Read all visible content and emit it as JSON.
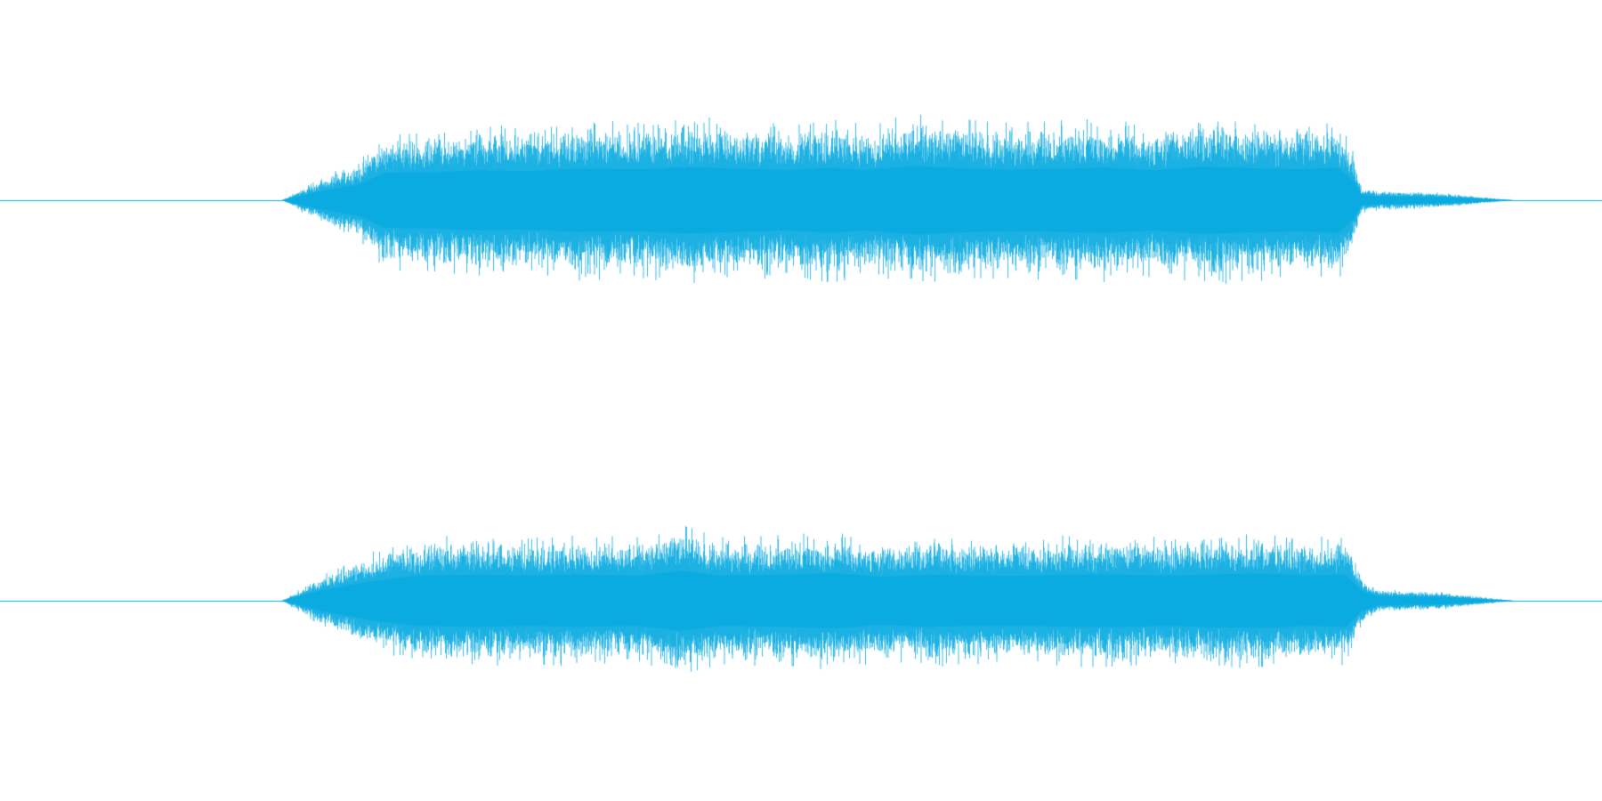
{
  "chart_data": {
    "type": "area",
    "title": "",
    "xlabel": "",
    "ylabel": "",
    "color": "#0aabe1",
    "background": "#ffffff",
    "grid": false,
    "legend": "none",
    "ylim": [
      -1,
      1
    ],
    "series": [
      {
        "channel": 1,
        "envelope": {
          "x": [
            0.0,
            0.176,
            0.2,
            0.225,
            0.24,
            0.27,
            0.3,
            0.33,
            0.36,
            0.4,
            0.43,
            0.46,
            0.49,
            0.52,
            0.54,
            0.57,
            0.6,
            0.63,
            0.66,
            0.69,
            0.72,
            0.75,
            0.78,
            0.81,
            0.835,
            0.845,
            0.85,
            0.86,
            0.9,
            0.945,
            1.0
          ],
          "peak": [
            0.0,
            0.0,
            0.18,
            0.32,
            0.55,
            0.56,
            0.6,
            0.58,
            0.63,
            0.62,
            0.66,
            0.63,
            0.6,
            0.65,
            0.6,
            0.68,
            0.64,
            0.61,
            0.63,
            0.65,
            0.6,
            0.67,
            0.64,
            0.62,
            0.65,
            0.38,
            0.1,
            0.08,
            0.06,
            0.0,
            0.0
          ]
        }
      },
      {
        "channel": 2,
        "envelope": {
          "x": [
            0.0,
            0.176,
            0.2,
            0.23,
            0.26,
            0.3,
            0.33,
            0.36,
            0.4,
            0.425,
            0.45,
            0.49,
            0.52,
            0.55,
            0.58,
            0.61,
            0.64,
            0.67,
            0.7,
            0.73,
            0.76,
            0.79,
            0.815,
            0.84,
            0.85,
            0.86,
            0.9,
            0.945,
            1.0
          ],
          "peak": [
            0.0,
            0.0,
            0.2,
            0.38,
            0.5,
            0.52,
            0.5,
            0.52,
            0.5,
            0.6,
            0.5,
            0.52,
            0.55,
            0.48,
            0.52,
            0.5,
            0.5,
            0.52,
            0.52,
            0.5,
            0.53,
            0.54,
            0.5,
            0.52,
            0.2,
            0.09,
            0.07,
            0.0,
            0.0
          ]
        }
      }
    ]
  }
}
